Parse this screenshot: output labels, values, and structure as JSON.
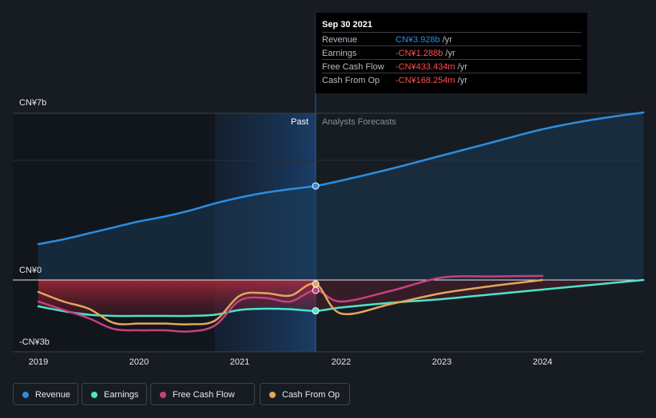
{
  "tooltip": {
    "date": "Sep 30 2021",
    "rows": [
      {
        "label": "Revenue",
        "value": "CN¥3.928b",
        "unit": " /yr",
        "color": "#2b8de0"
      },
      {
        "label": "Earnings",
        "value": "-CN¥1.288b",
        "unit": " /yr",
        "color": "#ff4d4d"
      },
      {
        "label": "Free Cash Flow",
        "value": "-CN¥433.434m",
        "unit": " /yr",
        "color": "#ff4d4d"
      },
      {
        "label": "Cash From Op",
        "value": "-CN¥168.254m",
        "unit": " /yr",
        "color": "#ff4d4d"
      }
    ]
  },
  "regions": {
    "past": "Past",
    "forecast": "Analysts Forecasts"
  },
  "legend": [
    {
      "label": "Revenue",
      "color": "#2b8de0"
    },
    {
      "label": "Earnings",
      "color": "#4fe3c9"
    },
    {
      "label": "Free Cash Flow",
      "color": "#c8407e"
    },
    {
      "label": "Cash From Op",
      "color": "#e6a45a"
    }
  ],
  "chart_data": {
    "type": "line",
    "unit": "CN¥ billions",
    "y_tick_labels": [
      "CN¥7b",
      "CN¥0",
      "-CN¥3b"
    ],
    "x_tick_labels": [
      "2019",
      "2020",
      "2021",
      "2022",
      "2023",
      "2024"
    ],
    "ylim": [
      -3,
      7
    ],
    "xlim": [
      2019.0,
      2025.0
    ],
    "past_end": 2021.75,
    "past_shade_start": 2020.75,
    "grid": "horizontal",
    "series": [
      {
        "name": "Revenue",
        "color": "#2b8de0",
        "area": true,
        "x": [
          2019.0,
          2019.25,
          2019.5,
          2019.75,
          2020.0,
          2020.25,
          2020.5,
          2020.75,
          2021.0,
          2021.25,
          2021.5,
          2021.75,
          2022.0,
          2022.5,
          2023.0,
          2023.5,
          2024.0,
          2024.5,
          2025.0
        ],
        "y": [
          1.5,
          1.7,
          1.95,
          2.2,
          2.45,
          2.65,
          2.9,
          3.2,
          3.45,
          3.65,
          3.8,
          3.93,
          4.15,
          4.65,
          5.2,
          5.75,
          6.3,
          6.7,
          7.0
        ]
      },
      {
        "name": "Earnings",
        "color": "#4fe3c9",
        "x": [
          2019.0,
          2019.25,
          2019.5,
          2019.75,
          2020.0,
          2020.25,
          2020.5,
          2020.75,
          2021.0,
          2021.25,
          2021.5,
          2021.75,
          2022.0,
          2022.5,
          2023.0,
          2023.5,
          2024.0,
          2024.5,
          2025.0
        ],
        "y": [
          -1.1,
          -1.3,
          -1.45,
          -1.5,
          -1.5,
          -1.5,
          -1.5,
          -1.45,
          -1.25,
          -1.2,
          -1.22,
          -1.288,
          -1.15,
          -0.95,
          -0.8,
          -0.6,
          -0.4,
          -0.2,
          0.0
        ]
      },
      {
        "name": "Free Cash Flow",
        "color": "#c8407e",
        "x": [
          2019.0,
          2019.25,
          2019.5,
          2019.75,
          2020.0,
          2020.25,
          2020.5,
          2020.75,
          2021.0,
          2021.25,
          2021.5,
          2021.75,
          2022.0,
          2022.5,
          2023.0,
          2023.5,
          2024.0
        ],
        "y": [
          -0.9,
          -1.25,
          -1.6,
          -2.05,
          -2.1,
          -2.1,
          -2.15,
          -1.9,
          -0.85,
          -0.75,
          -0.9,
          -0.433,
          -0.9,
          -0.45,
          0.1,
          0.15,
          0.17
        ]
      },
      {
        "name": "Cash From Op",
        "color": "#e6a45a",
        "x": [
          2019.0,
          2019.25,
          2019.5,
          2019.75,
          2020.0,
          2020.25,
          2020.5,
          2020.75,
          2021.0,
          2021.25,
          2021.5,
          2021.75,
          2022.0,
          2022.5,
          2023.0,
          2023.5,
          2024.0
        ],
        "y": [
          -0.5,
          -0.9,
          -1.2,
          -1.8,
          -1.82,
          -1.82,
          -1.85,
          -1.7,
          -0.65,
          -0.55,
          -0.65,
          -0.168,
          -1.4,
          -1.0,
          -0.55,
          -0.25,
          0.0
        ]
      }
    ]
  }
}
